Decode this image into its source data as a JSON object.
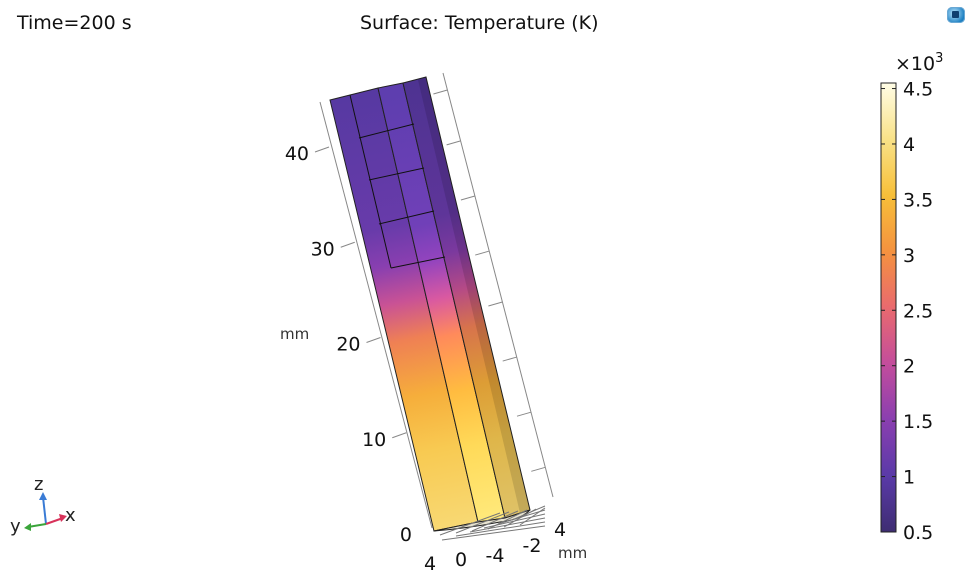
{
  "header": {
    "time_label": "Time=200 s",
    "plot_title": "Surface: Temperature (K)"
  },
  "chart_data": {
    "type": "heatmap",
    "title": "Surface: Temperature (K)",
    "time": "Time=200 s",
    "quantity": "Temperature",
    "unit": "K",
    "colormap": "thermal",
    "colormap_stops": [
      "#3e2d72",
      "#5a3aa8",
      "#8a3fb0",
      "#c34d9c",
      "#e96a6e",
      "#f4923f",
      "#f7bf39",
      "#f9e288",
      "#fffde6"
    ],
    "colorbar": {
      "multiplier": "×10",
      "exponent": "3",
      "min": 0.5,
      "max": 4.55,
      "ticks": [
        {
          "value": 0.5,
          "label": "0.5"
        },
        {
          "value": 1,
          "label": "1"
        },
        {
          "value": 1.5,
          "label": "1.5"
        },
        {
          "value": 2,
          "label": "2"
        },
        {
          "value": 2.5,
          "label": "2.5"
        },
        {
          "value": 3,
          "label": "3"
        },
        {
          "value": 3.5,
          "label": "3.5"
        },
        {
          "value": 4,
          "label": "4"
        },
        {
          "value": 4.5,
          "label": "4.5"
        }
      ]
    },
    "z_axis": {
      "unit": "mm",
      "ticks": [
        {
          "value": 0,
          "label": "0"
        },
        {
          "value": 10,
          "label": "10"
        },
        {
          "value": 20,
          "label": "20"
        },
        {
          "value": 30,
          "label": "30"
        },
        {
          "value": 40,
          "label": "40"
        }
      ]
    },
    "x_axis": {
      "unit": "",
      "ticks": [
        {
          "value": 4,
          "label": "4"
        },
        {
          "value": 0,
          "label": "0"
        },
        {
          "value": -4,
          "label": "-4"
        }
      ]
    },
    "y_axis": {
      "unit": "mm",
      "ticks": [
        {
          "value": -2,
          "label": "-2"
        },
        {
          "value": 4,
          "label": "4"
        }
      ]
    },
    "surface_profile": [
      {
        "z": 0,
        "value": 3.9
      },
      {
        "z": 8,
        "value": 3.7
      },
      {
        "z": 14,
        "value": 3.35
      },
      {
        "z": 20,
        "value": 2.8
      },
      {
        "z": 24,
        "value": 2.1
      },
      {
        "z": 28,
        "value": 1.5
      },
      {
        "z": 32,
        "value": 1.15
      },
      {
        "z": 46,
        "value": 0.95
      }
    ],
    "axis_triad": {
      "x": "x",
      "y": "y",
      "z": "z"
    }
  }
}
